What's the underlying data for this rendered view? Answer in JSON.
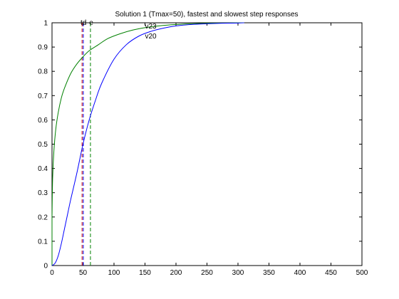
{
  "chart_data": {
    "type": "line",
    "title": "Solution 1 (Tmax=50), fastest and slowest step responses",
    "xlabel": "",
    "ylabel": "",
    "xlim": [
      0,
      500
    ],
    "ylim": [
      0,
      1
    ],
    "xticks": [
      0,
      50,
      100,
      150,
      200,
      250,
      300,
      350,
      400,
      450,
      500
    ],
    "yticks": [
      0,
      0.1,
      0.2,
      0.3,
      0.4,
      0.5,
      0.6,
      0.7,
      0.8,
      0.9,
      1
    ],
    "grid": false,
    "series": [
      {
        "name": "v23",
        "color": "#008000",
        "x": [
          0,
          1,
          3,
          6,
          10,
          15,
          20,
          30,
          40,
          50,
          60,
          75,
          90,
          110,
          130,
          150,
          175,
          200,
          225,
          250,
          275,
          300,
          310
        ],
        "y": [
          0.2,
          0.36,
          0.47,
          0.56,
          0.63,
          0.69,
          0.73,
          0.79,
          0.83,
          0.86,
          0.885,
          0.91,
          0.935,
          0.955,
          0.97,
          0.98,
          0.988,
          0.993,
          0.996,
          0.998,
          0.999,
          1.0,
          1.0
        ]
      },
      {
        "name": "v20",
        "color": "#0000ff",
        "x": [
          0,
          5,
          10,
          15,
          20,
          25,
          30,
          40,
          50,
          60,
          70,
          80,
          100,
          120,
          140,
          160,
          180,
          200,
          225,
          250,
          275,
          300,
          310
        ],
        "y": [
          0,
          0.01,
          0.04,
          0.09,
          0.15,
          0.21,
          0.27,
          0.38,
          0.5,
          0.6,
          0.68,
          0.75,
          0.85,
          0.91,
          0.945,
          0.965,
          0.978,
          0.987,
          0.993,
          0.996,
          0.998,
          0.999,
          1.0
        ]
      }
    ],
    "vlines": [
      {
        "x": 48.5,
        "color": "#cc0000",
        "style": "dashed"
      },
      {
        "x": 50.5,
        "color": "#0000ff",
        "style": "dashed"
      },
      {
        "x": 62,
        "color": "#008000",
        "style": "dashed"
      }
    ],
    "annotations": [
      {
        "text": "td",
        "x": 46,
        "y": 1.0
      },
      {
        "text": "e",
        "x": 60,
        "y": 1.0
      },
      {
        "text": "v23",
        "x": 150,
        "y": 0.985
      },
      {
        "text": "v20",
        "x": 150,
        "y": 0.945
      }
    ]
  }
}
